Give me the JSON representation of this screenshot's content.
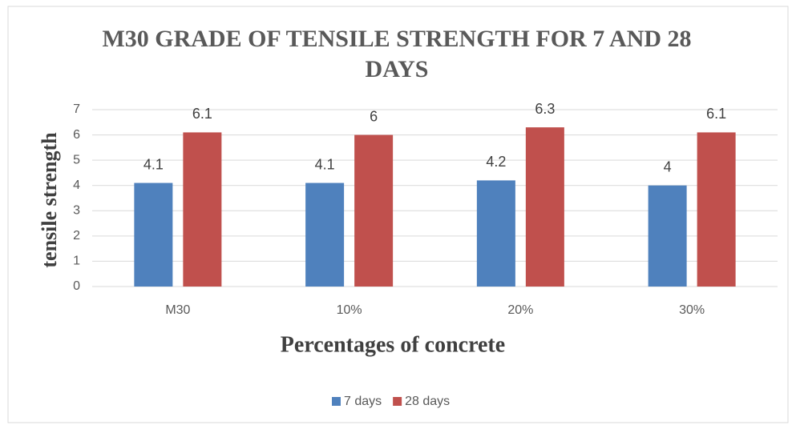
{
  "chart_data": {
    "type": "bar",
    "title": "M30 GRADE OF TENSILE STRENGTH FOR 7 AND 28 DAYS",
    "x_label": "Percentages of concrete",
    "y_label": "tensile strength",
    "categories": [
      "M30",
      "10%",
      "20%",
      "30%"
    ],
    "series": [
      {
        "name": "7 days",
        "color": "#4f81bd",
        "values": [
          4.1,
          4.1,
          4.2,
          4
        ]
      },
      {
        "name": "28 days",
        "color": "#c0504d",
        "values": [
          6.1,
          6,
          6.3,
          6.1
        ]
      }
    ],
    "ylim": [
      0,
      7
    ],
    "yticks": [
      0,
      1,
      2,
      3,
      4,
      5,
      6,
      7
    ],
    "grid": true,
    "legend": "bottom"
  }
}
